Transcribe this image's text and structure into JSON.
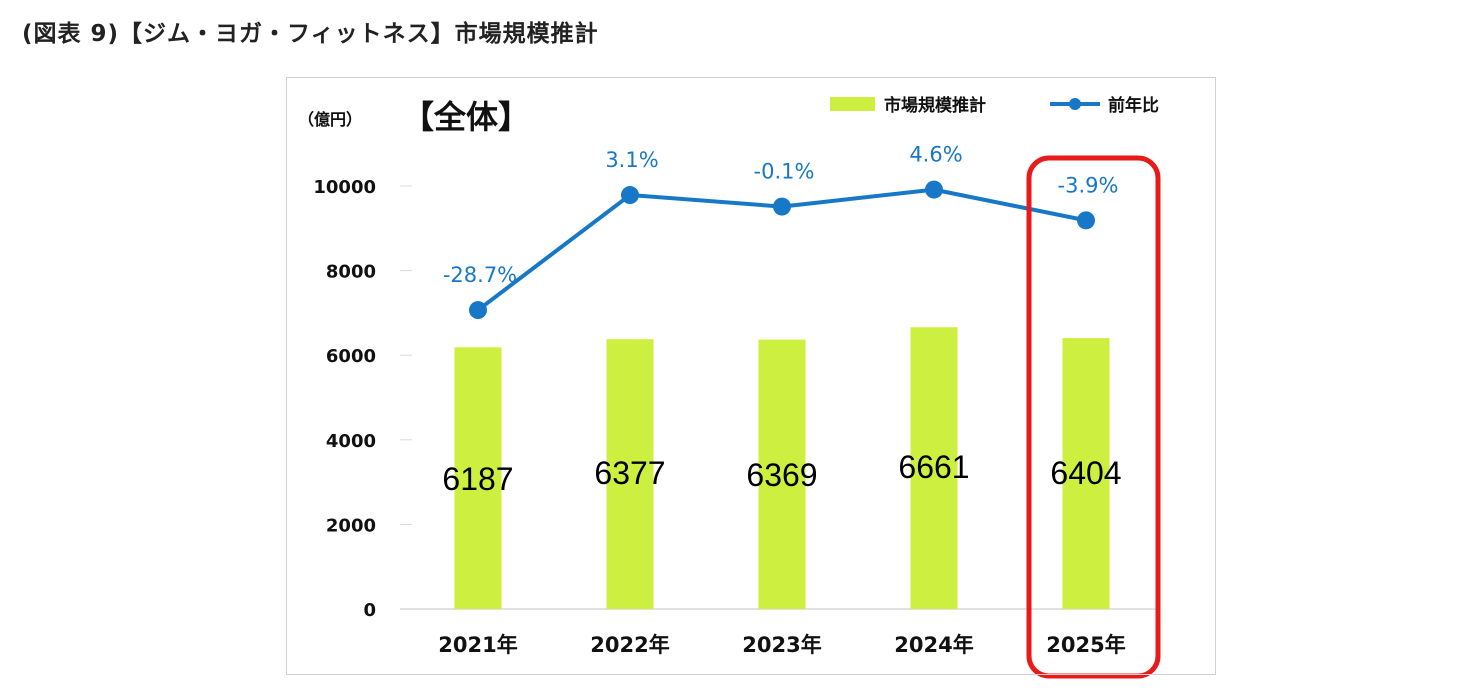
{
  "page_title": "(図表 9)【ジム・ヨガ・フィットネス】市場規模推計",
  "chart_data": {
    "type": "bar",
    "title": "【全体】",
    "y_unit_label": "（億円）",
    "ylim": [
      0,
      10000
    ],
    "y_ticks": [
      "0",
      "2000",
      "4000",
      "6000",
      "8000",
      "10000"
    ],
    "categories": [
      "2021年",
      "2022年",
      "2023年",
      "2024年",
      "2025年"
    ],
    "series": [
      {
        "name": "市場規模推計",
        "kind": "bar",
        "color": "#cdef3f",
        "values": [
          6187,
          6377,
          6369,
          6661,
          6404
        ],
        "labels": [
          "6187",
          "6377",
          "6369",
          "6661",
          "6404"
        ]
      },
      {
        "name": "前年比",
        "kind": "line",
        "color": "#1878c8",
        "values": [
          -28.7,
          3.1,
          -0.1,
          4.6,
          -3.9
        ],
        "labels": [
          "-28.7%",
          "3.1%",
          "-0.1%",
          "4.6%",
          "-3.9%"
        ]
      }
    ],
    "highlight": {
      "category": "2025年",
      "color": "#e81a1a"
    },
    "grid": false
  }
}
